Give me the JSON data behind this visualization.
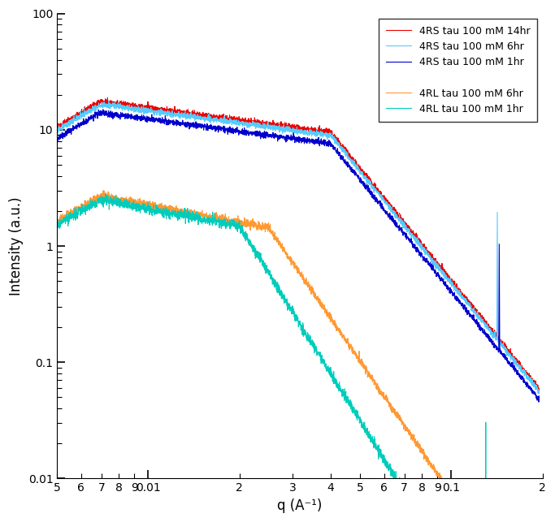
{
  "xlabel": "q (A⁻¹)",
  "ylabel": "Intensity (a.u.)",
  "xlim": [
    0.005,
    0.2
  ],
  "ylim": [
    0.01,
    100
  ],
  "legend_labels": [
    "4RS tau 100 mM 14hr",
    "4RS tau 100 mM 6hr",
    "4RS tau 100 mM 1hr",
    "",
    "4RL tau 100 mM 6hr",
    "4RL tau 100 mM 1hr"
  ],
  "colors": {
    "4RS_14hr": "#ee0000",
    "4RS_6hr": "#55ccff",
    "4RS_1hr": "#0000cc",
    "4RL_6hr": "#ff9933",
    "4RL_1hr": "#00ccbb"
  },
  "lw": 0.8,
  "background_color": "#ffffff"
}
